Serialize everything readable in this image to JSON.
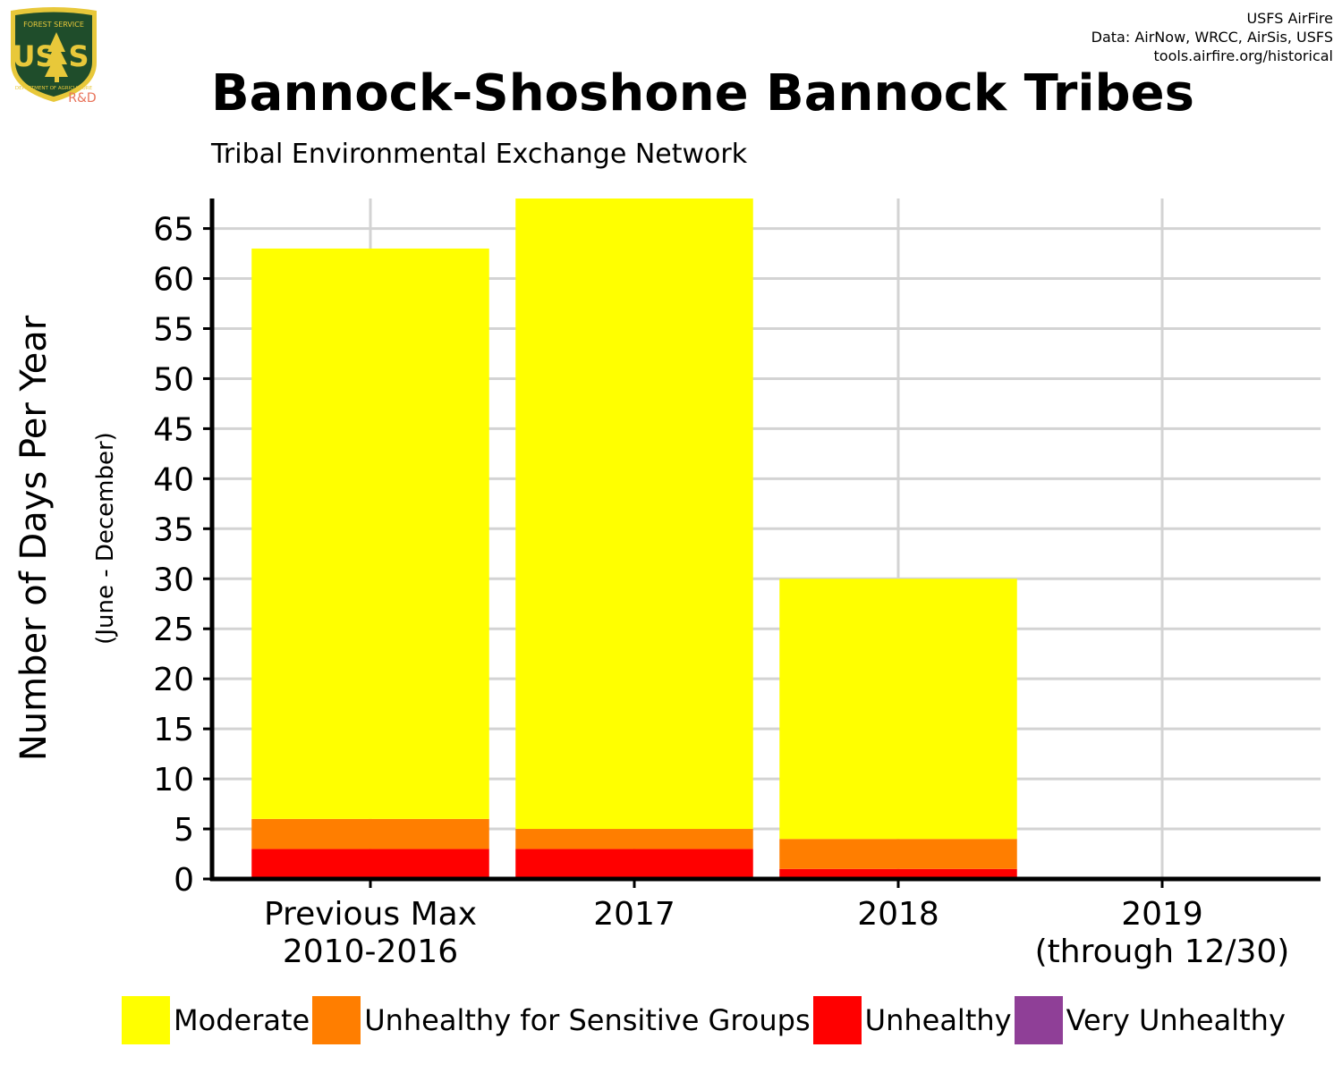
{
  "header": {
    "credits": [
      "USFS AirFire",
      "Data: AirNow, WRCC, AirSis, USFS",
      "tools.airfire.org/historical"
    ],
    "logo": {
      "text_top": "FOREST SERVICE",
      "text_main": "US",
      "text_bottom": "DEPARTMENT OF AGRICULTURE",
      "tag": "R&D",
      "colors": {
        "shield": "#1f4d2b",
        "border": "#e8c83a",
        "text": "#e8c83a",
        "tag": "#e8735a"
      }
    }
  },
  "chart_data": {
    "type": "bar",
    "stacked": true,
    "title": "Bannock-Shoshone Bannock Tribes",
    "subtitle": "Tribal Environmental Exchange Network",
    "ylabel": "Number of Days Per Year",
    "ylabel_sub": "(June - December)",
    "xlabel": "",
    "categories": [
      "Previous Max\n2010-2016",
      "2017",
      "2018",
      "2019\n(through 12/30)"
    ],
    "ylim": [
      0,
      68
    ],
    "yticks": [
      0,
      5,
      10,
      15,
      20,
      25,
      30,
      35,
      40,
      45,
      50,
      55,
      60,
      65
    ],
    "grid": true,
    "legend_position": "bottom",
    "series": [
      {
        "name": "Unhealthy",
        "color": "#ff0000",
        "values": [
          3,
          3,
          1,
          0
        ]
      },
      {
        "name": "Unhealthy for Sensitive Groups",
        "color": "#ff7e00",
        "values": [
          3,
          2,
          3,
          0
        ]
      },
      {
        "name": "Moderate",
        "color": "#ffff00",
        "values": [
          57,
          63,
          26,
          0
        ]
      },
      {
        "name": "Very Unhealthy",
        "color": "#8f3f97",
        "values": [
          0,
          0,
          0,
          0
        ]
      }
    ],
    "legend": [
      {
        "name": "Moderate",
        "color": "#ffff00"
      },
      {
        "name": "Unhealthy for Sensitive Groups",
        "color": "#ff7e00"
      },
      {
        "name": "Unhealthy",
        "color": "#ff0000"
      },
      {
        "name": "Very Unhealthy",
        "color": "#8f3f97"
      }
    ]
  }
}
